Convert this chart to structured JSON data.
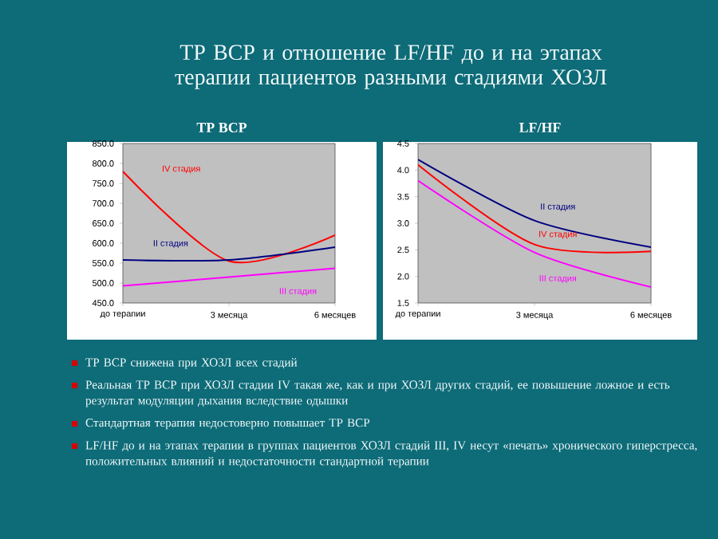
{
  "chart_data": [
    {
      "type": "line",
      "title": "ТР ВСР",
      "categories": [
        "до терапии",
        "3 месяца",
        "6 месяцев"
      ],
      "series": [
        {
          "name": "IV стадия",
          "color": "#ff0000",
          "values": [
            780,
            555,
            620
          ]
        },
        {
          "name": "II стадия",
          "color": "#000080",
          "values": [
            558,
            558,
            590
          ]
        },
        {
          "name": "III стадия",
          "color": "#ff00ff",
          "values": [
            493,
            515,
            537
          ]
        }
      ],
      "ylim": [
        450,
        850
      ],
      "yticks": [
        {
          "value": 450,
          "label": "450.0"
        },
        {
          "value": 500,
          "label": "500.0"
        },
        {
          "value": 550,
          "label": "550.0"
        },
        {
          "value": 600,
          "label": "600.0"
        },
        {
          "value": 650,
          "label": "650.0"
        },
        {
          "value": 700,
          "label": "700.0"
        },
        {
          "value": 750,
          "label": "750.0"
        },
        {
          "value": 800,
          "label": "800.0"
        },
        {
          "value": 850,
          "label": "850.0"
        }
      ],
      "grid": false,
      "legend": false,
      "annotations": [
        "ТР ВСР и отношение LF/HF до и на этапах терапии пациентов разными стадиями ХОЗЛ",
        "ТР ВСР снижена при  ХОЗЛ всех стадий",
        "Реальная ТР ВСР при ХОЗЛ стадии IV такая же, как и при ХОЗЛ других стадий, ее повышение ложное и есть результат модуляции дыхания вследствие одышки",
        "Стандартная терапия недостоверно повышает ТР ВСР",
        "LF/HF до и на этапах терапии в группах пациентов ХОЗЛ стадий III, IV несут «печать» хронического гиперстресса, положительных влияний и недостаточности стандартной терапии"
      ]
    },
    {
      "type": "line",
      "title": "LF/HF",
      "categories": [
        "до терапии",
        "3 месяца",
        "6 месяцев"
      ],
      "series": [
        {
          "name": "II стадия",
          "color": "#000080",
          "values": [
            4.2,
            3.05,
            2.55
          ]
        },
        {
          "name": "IV стадия",
          "color": "#ff0000",
          "values": [
            4.1,
            2.6,
            2.47
          ]
        },
        {
          "name": "III стадия",
          "color": "#ff00ff",
          "values": [
            3.8,
            2.45,
            1.8
          ]
        }
      ],
      "ylim": [
        1.5,
        4.5
      ],
      "yticks": [
        1.5,
        {
          "value": 2,
          "label": "2.0"
        },
        2.5,
        {
          "value": 3,
          "label": "3.0"
        },
        3.5,
        {
          "value": 4,
          "label": "4.0"
        },
        4.5
      ],
      "grid": false,
      "legend": false
    }
  ]
}
